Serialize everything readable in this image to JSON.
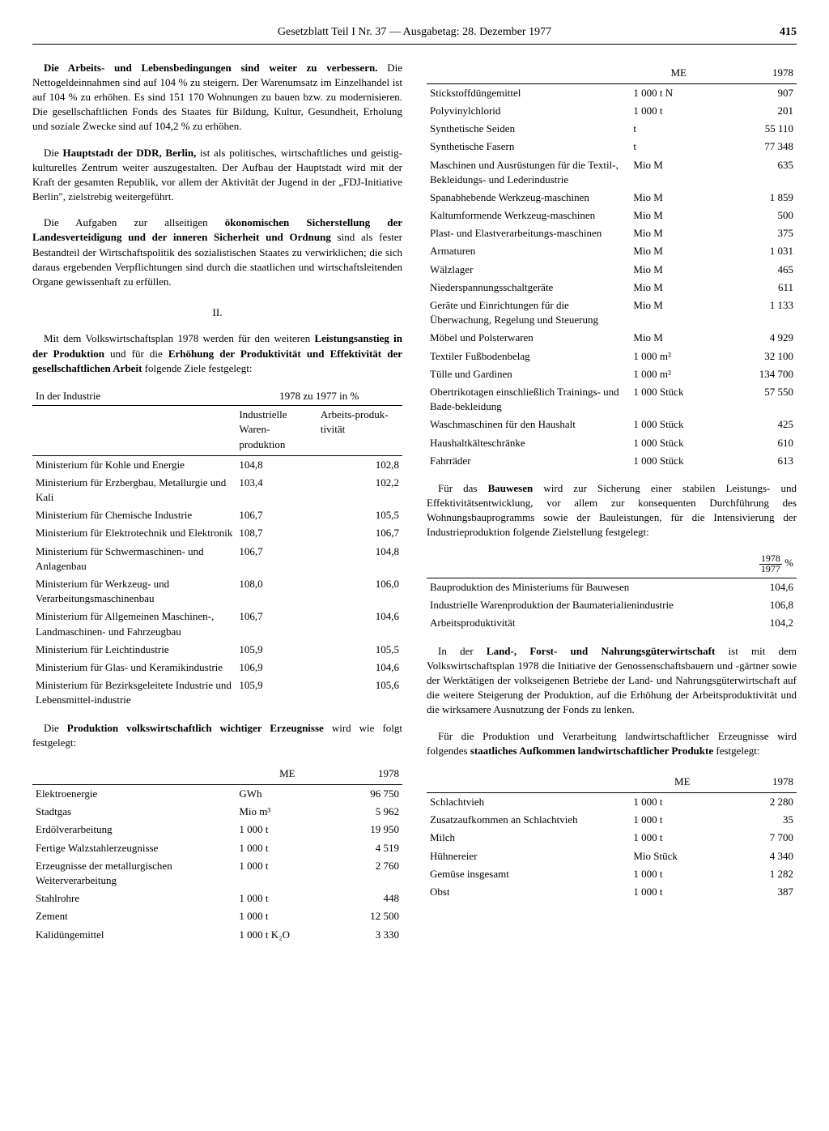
{
  "header": {
    "title": "Gesetzblatt Teil I Nr. 37 — Ausgabetag: 28. Dezember 1977",
    "page": "415"
  },
  "left": {
    "p1_lead": "Die Arbeits- und Lebensbedingungen sind weiter zu verbessern.",
    "p1_rest": " Die Nettogeldeinnahmen sind auf 104 % zu steigern. Der Warenumsatz im Einzelhandel ist auf 104 % zu erhöhen. Es sind 151 170 Wohnungen zu bauen bzw. zu modernisieren. Die gesellschaftlichen Fonds des Staates für Bildung, Kultur, Gesundheit, Erholung und soziale Zwecke sind auf 104,2 % zu erhöhen.",
    "p2_a": "Die ",
    "p2_b": "Hauptstadt der DDR, Berlin,",
    "p2_c": " ist als politisches, wirtschaftliches und geistig-kulturelles Zentrum weiter auszugestalten. Der Aufbau der Hauptstadt wird mit der Kraft der gesamten Republik, vor allem der Aktivität der Jugend in der „FDJ-Initiative Berlin\", zielstrebig weitergeführt.",
    "p3_a": "Die Aufgaben zur allseitigen ",
    "p3_b": "ökonomischen Sicherstellung der Landesverteidigung und der inneren Sicherheit und Ordnung",
    "p3_c": " sind als fester Bestandteil der Wirtschaftspolitik des sozialistischen Staates zu verwirklichen; die sich daraus ergebenden Verpflichtungen sind durch die staatlichen und wirtschaftsleitenden Organe gewissenhaft zu erfüllen.",
    "section": "II.",
    "p4_a": "Mit dem Volkswirtschaftsplan 1978 werden für den weiteren ",
    "p4_b": "Leistungsanstieg in der Produktion",
    "p4_c": " und für die ",
    "p4_d": "Erhöhung der Produktivität und Effektivität der gesellschaftlichen Arbeit",
    "p4_e": " folgende Ziele festgelegt:",
    "table1": {
      "head_left": "In der Industrie",
      "head_right": "1978 zu 1977 in %",
      "sub1": "Industrielle Waren-produktion",
      "sub2": "Arbeits-produk-tivität",
      "rows": [
        {
          "label": "Ministerium für Kohle und Energie",
          "v1": "104,8",
          "v2": "102,8"
        },
        {
          "label": "Ministerium für Erzbergbau, Metallurgie und Kali",
          "v1": "103,4",
          "v2": "102,2"
        },
        {
          "label": "Ministerium für Chemische Industrie",
          "v1": "106,7",
          "v2": "105,5"
        },
        {
          "label": "Ministerium für Elektrotechnik und Elektronik",
          "v1": "108,7",
          "v2": "106,7"
        },
        {
          "label": "Ministerium für Schwermaschinen- und Anlagenbau",
          "v1": "106,7",
          "v2": "104,8"
        },
        {
          "label": "Ministerium für Werkzeug- und Verarbeitungsmaschinenbau",
          "v1": "108,0",
          "v2": "106,0"
        },
        {
          "label": "Ministerium für Allgemeinen Maschinen-, Landmaschinen- und Fahrzeugbau",
          "v1": "106,7",
          "v2": "104,6"
        },
        {
          "label": "Ministerium für Leichtindustrie",
          "v1": "105,9",
          "v2": "105,5"
        },
        {
          "label": "Ministerium für Glas- und Keramikindustrie",
          "v1": "106,9",
          "v2": "104,6"
        },
        {
          "label": "Ministerium für Bezirksgeleitete Industrie und Lebensmittel-industrie",
          "v1": "105,9",
          "v2": "105,6"
        }
      ]
    },
    "p5_a": "Die ",
    "p5_b": "Produktion volkswirtschaftlich wichtiger Erzeugnisse",
    "p5_c": " wird wie folgt festgelegt:",
    "table2": {
      "head_me": "ME",
      "head_year": "1978",
      "rows": [
        {
          "label": "Elektroenergie",
          "me": "GWh",
          "val": "96 750"
        },
        {
          "label": "Stadtgas",
          "me": "Mio m³",
          "val": "5 962"
        },
        {
          "label": "Erdölverarbeitung",
          "me": "1 000 t",
          "val": "19 950"
        },
        {
          "label": "Fertige Walzstahlerzeugnisse",
          "me": "1 000 t",
          "val": "4 519"
        },
        {
          "label": "Erzeugnisse der metallurgischen Weiterverarbeitung",
          "me": "1 000 t",
          "val": "2 760"
        },
        {
          "label": "Stahlrohre",
          "me": "1 000 t",
          "val": "448"
        },
        {
          "label": "Zement",
          "me": "1 000 t",
          "val": "12 500"
        },
        {
          "label": "Kalidüngemittel",
          "me": "1 000 t K₂O",
          "val": "3 330"
        }
      ]
    }
  },
  "right": {
    "table1": {
      "head_me": "ME",
      "head_year": "1978",
      "rows": [
        {
          "label": "Stickstoffdüngemittel",
          "me": "1 000 t N",
          "val": "907"
        },
        {
          "label": "Polyvinylchlorid",
          "me": "1 000 t",
          "val": "201"
        },
        {
          "label": "Synthetische Seiden",
          "me": "t",
          "val": "55 110"
        },
        {
          "label": "Synthetische Fasern",
          "me": "t",
          "val": "77 348"
        },
        {
          "label": "Maschinen und Ausrüstungen für die Textil-, Bekleidungs- und Lederindustrie",
          "me": "Mio M",
          "val": "635"
        },
        {
          "label": "Spanabhebende Werkzeug-maschinen",
          "me": "Mio M",
          "val": "1 859"
        },
        {
          "label": "Kaltumformende Werkzeug-maschinen",
          "me": "Mio M",
          "val": "500"
        },
        {
          "label": "Plast- und Elastverarbeitungs-maschinen",
          "me": "Mio M",
          "val": "375"
        },
        {
          "label": "Armaturen",
          "me": "Mio M",
          "val": "1 031"
        },
        {
          "label": "Wälzlager",
          "me": "Mio M",
          "val": "465"
        },
        {
          "label": "Niederspannungsschaltgeräte",
          "me": "Mio M",
          "val": "611"
        },
        {
          "label": "Geräte und Einrichtungen für die Überwachung, Regelung und Steuerung",
          "me": "Mio M",
          "val": "1 133"
        },
        {
          "label": "Möbel und Polsterwaren",
          "me": "Mio M",
          "val": "4 929"
        },
        {
          "label": "Textiler Fußbodenbelag",
          "me": "1 000 m²",
          "val": "32 100"
        },
        {
          "label": "Tülle und Gardinen",
          "me": "1 000 m²",
          "val": "134 700"
        },
        {
          "label": "Obertrikotagen einschließlich Trainings- und Bade-bekleidung",
          "me": "1 000 Stück",
          "val": "57 550"
        },
        {
          "label": "Waschmaschinen für den Haushalt",
          "me": "1 000 Stück",
          "val": "425"
        },
        {
          "label": "Haushaltkälteschränke",
          "me": "1 000 Stück",
          "val": "610"
        },
        {
          "label": "Fahrräder",
          "me": "1 000 Stück",
          "val": "613"
        }
      ]
    },
    "p1_a": "Für das ",
    "p1_b": "Bauwesen",
    "p1_c": " wird zur Sicherung einer stabilen Leistungs- und Effektivitätsentwicklung, vor allem zur konsequenten Durchführung des Wohnungsbauprogramms sowie der Bauleistungen, für die Intensivierung der Industrieproduktion folgende Zielstellung festgelegt:",
    "table2": {
      "frac_top": "1978",
      "frac_bot": "1977",
      "frac_unit": "%",
      "rows": [
        {
          "label": "Bauproduktion des Ministeriums für Bauwesen",
          "val": "104,6"
        },
        {
          "label": "Industrielle Warenproduktion der Baumaterialienindustrie",
          "val": "106,8"
        },
        {
          "label": "Arbeitsproduktivität",
          "val": "104,2"
        }
      ]
    },
    "p2_a": "In der ",
    "p2_b": "Land-, Forst- und Nahrungsgüterwirtschaft",
    "p2_c": " ist mit dem Volkswirtschaftsplan 1978 die Initiative der Genossenschaftsbauern und -gärtner sowie der Werktätigen der volkseigenen Betriebe der Land- und Nahrungsgüterwirtschaft auf die weitere Steigerung der Produktion, auf die Erhöhung der Arbeitsproduktivität und die wirksamere Ausnutzung der Fonds zu lenken.",
    "p3_a": "Für die Produktion und Verarbeitung landwirtschaftlicher Erzeugnisse wird folgendes ",
    "p3_b": "staatliches Aufkommen landwirtschaftlicher Produkte",
    "p3_c": " festgelegt:",
    "table3": {
      "head_me": "ME",
      "head_year": "1978",
      "rows": [
        {
          "label": "Schlachtvieh",
          "me": "1 000 t",
          "val": "2 280"
        },
        {
          "label": "Zusatzaufkommen an Schlachtvieh",
          "me": "1 000 t",
          "val": "35"
        },
        {
          "label": "Milch",
          "me": "1 000 t",
          "val": "7 700"
        },
        {
          "label": "Hühnereier",
          "me": "Mio Stück",
          "val": "4 340"
        },
        {
          "label": "Gemüse insgesamt",
          "me": "1 000 t",
          "val": "1 282"
        },
        {
          "label": "Obst",
          "me": "1 000 t",
          "val": "387"
        }
      ]
    }
  }
}
